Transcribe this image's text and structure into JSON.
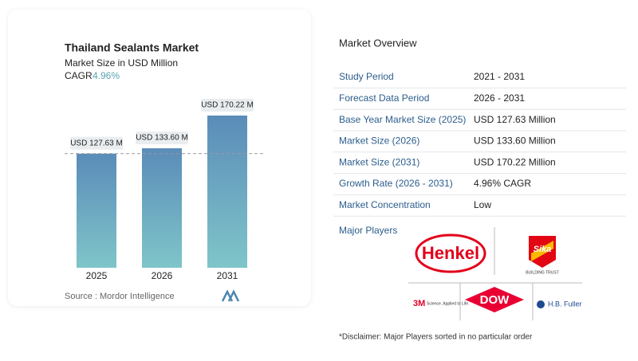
{
  "chart_data": {
    "type": "bar",
    "title": "Thailand Sealants Market",
    "subtitle": "Market Size in USD Million",
    "cagr_label": "CAGR",
    "cagr": "4.96%",
    "categories": [
      "2025",
      "2026",
      "2031"
    ],
    "values": [
      127.63,
      133.6,
      170.22
    ],
    "value_labels": [
      "USD 127.63 M",
      "USD 133.60 M",
      "USD 170.22 M"
    ],
    "colors": [
      "#5b8cb9",
      "#7fc5c9"
    ],
    "reference_line": true,
    "source": "Source :  Mordor Intelligence"
  },
  "overview": {
    "title": "Market Overview",
    "rows": [
      [
        "Study Period",
        "2021 - 2031"
      ],
      [
        "Forecast Data Period",
        "2026 - 2031"
      ],
      [
        "Base Year Market Size (2025)",
        "USD 127.63 Million"
      ],
      [
        "Market Size (2026)",
        "USD 133.60 Million"
      ],
      [
        "Market Size (2031)",
        "USD 170.22 Million"
      ],
      [
        "Growth Rate (2026 - 2031)",
        "4.96% CAGR"
      ],
      [
        "Market Concentration",
        "Low"
      ]
    ],
    "players_label": "Major Players",
    "players": {
      "henkel": "Henkel",
      "sika": "Sika",
      "sika_tagline": "BUILDING TRUST",
      "threem": "3M",
      "threem_tagline": "Science. Applied to Life.",
      "dow": "DOW",
      "fuller": "H.B. Fuller"
    },
    "disclaimer": "*Disclaimer: Major Players sorted in no particular order"
  }
}
